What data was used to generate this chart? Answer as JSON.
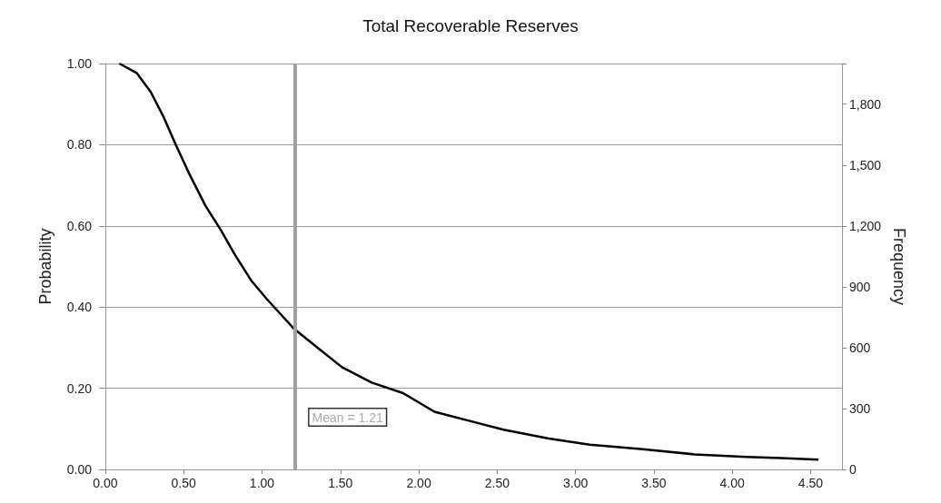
{
  "chart_data": {
    "type": "line",
    "title": "Total Recoverable Reserves",
    "ylabel": "Probability",
    "y2label": "Frequency",
    "series": [
      {
        "color": "#000000",
        "x": [
          0.09,
          0.2,
          0.29,
          0.37,
          0.45,
          0.54,
          0.64,
          0.74,
          0.83,
          0.93,
          1.03,
          1.12,
          1.2,
          1.36,
          1.51,
          1.7,
          1.9,
          2.1,
          2.32,
          2.54,
          2.83,
          3.09,
          3.43,
          3.76,
          4.09,
          4.31,
          4.55
        ],
        "values": [
          1.0,
          0.977,
          0.93,
          0.87,
          0.8,
          0.725,
          0.649,
          0.588,
          0.527,
          0.466,
          0.42,
          0.382,
          0.348,
          0.298,
          0.252,
          0.214,
          0.188,
          0.142,
          0.12,
          0.098,
          0.076,
          0.061,
          0.05,
          0.037,
          0.031,
          0.028,
          0.024
        ]
      }
    ],
    "xlim": [
      -0.04,
      4.7
    ],
    "xticks": [
      {
        "value": 0,
        "label": "0.00"
      },
      {
        "value": 0.5,
        "label": "0.50"
      },
      {
        "value": 1,
        "label": "1.00"
      },
      {
        "value": 1.5,
        "label": "1.50"
      },
      {
        "value": 2,
        "label": "2.00"
      },
      {
        "value": 2.5,
        "label": "2.50"
      },
      {
        "value": 3,
        "label": "3.00"
      },
      {
        "value": 3.5,
        "label": "3.50"
      },
      {
        "value": 4,
        "label": "4.00"
      },
      {
        "value": 4.5,
        "label": "4.50"
      }
    ],
    "ylim": [
      0,
      1
    ],
    "yticks": [
      {
        "value": 0,
        "label": "0.00"
      },
      {
        "value": 0.2,
        "label": "0.20"
      },
      {
        "value": 0.4,
        "label": "0.40"
      },
      {
        "value": 0.6,
        "label": "0.60"
      },
      {
        "value": 0.8,
        "label": "0.80"
      },
      {
        "value": 1,
        "label": "1.00"
      }
    ],
    "y2lim": [
      0,
      2000
    ],
    "y2ticks": [
      0,
      300,
      600,
      900,
      {
        "value": 1200,
        "label": "1,200"
      },
      {
        "value": 1500,
        "label": "1,500"
      },
      {
        "value": 1800,
        "label": "1,800"
      }
    ],
    "ref_lines": [
      {
        "axis": "x",
        "value": 1.21,
        "label": "Mean = 1.21",
        "color": "#a0a0a0"
      }
    ],
    "grid": "y",
    "marker": "none",
    "line_style": "solid"
  }
}
